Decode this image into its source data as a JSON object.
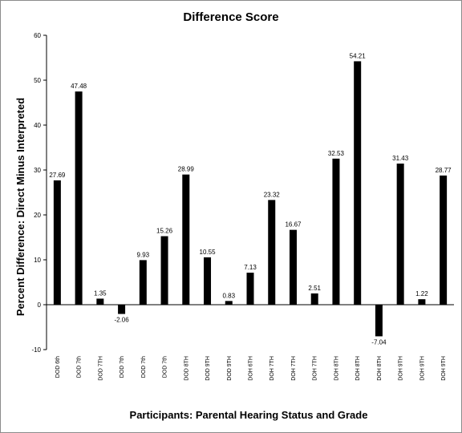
{
  "chart_data": {
    "type": "bar",
    "title": "Difference Score",
    "xlabel": "Participants:  Parental Hearing Status and Grade",
    "ylabel": "Percent Difference: Direct Minus Interpreted",
    "ylim": [
      -10,
      60
    ],
    "yticks": [
      -10,
      0,
      10,
      20,
      30,
      40,
      50,
      60
    ],
    "grid": false,
    "legend": "none",
    "bar_color": "#000000",
    "categories": [
      "DOD 6th",
      "DOD 7th",
      "DOD 7TH",
      "DOD 7th",
      "DOD 7th",
      "DOD 7th",
      "DOD 8TH",
      "DOD 9TH",
      "DOD 9TH",
      "DOH 6TH",
      "DOH 7TH",
      "DOH 7TH",
      "DOH 7TH",
      "DOH 8TH",
      "DOH 8TH",
      "DOH 8TH",
      "DOH 9TH",
      "DOH 9TH",
      "DOH 9TH"
    ],
    "values": [
      27.69,
      47.48,
      1.35,
      -2.06,
      9.93,
      15.26,
      28.99,
      10.55,
      0.83,
      7.13,
      23.32,
      16.67,
      2.51,
      32.53,
      54.21,
      -7.04,
      31.43,
      1.22,
      28.77
    ],
    "data_labels": [
      "27.69",
      "47.48",
      "1.35",
      "-2.06",
      "9.93",
      "15.26",
      "28.99",
      "10.55",
      "0.83",
      "7.13",
      "23.32",
      "16.67",
      "2.51",
      "32.53",
      "54.21",
      "-7.04",
      "31.43",
      "1.22",
      "28.77"
    ]
  }
}
